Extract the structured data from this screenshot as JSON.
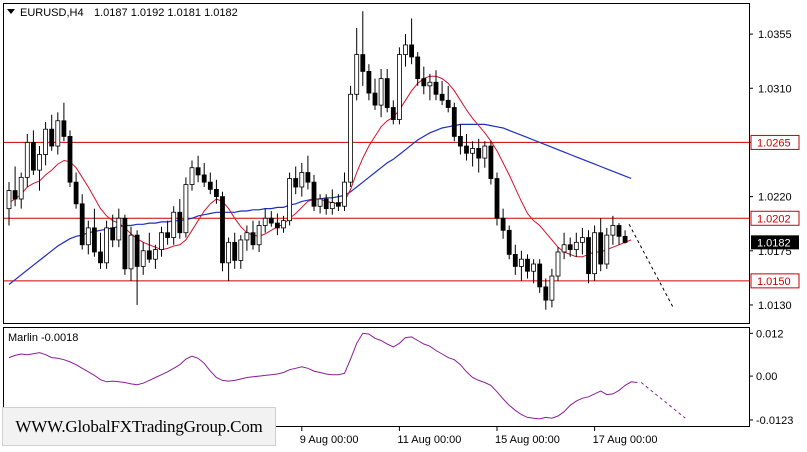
{
  "header": {
    "symbol": "EURUSD,H4",
    "ohlc": "1.0187 1.0192 1.0181 1.0182"
  },
  "watermark": "WWW.GlobalFXTradingGroup.Com",
  "colors": {
    "bull_body": "#ffffff",
    "bear_body": "#000000",
    "fast_ma": "#d4142a",
    "slow_ma": "#1c2fbf",
    "level_line": "#cc0000",
    "oscillator": "#8a1e96",
    "level_label_bg": "#ffffff",
    "current_label_bg": "#000000"
  },
  "chart_data": [
    {
      "type": "candlestick",
      "ylim": [
        1.0115,
        1.038
      ],
      "y_ticks": [
        "1.0355",
        "1.0310",
        "1.0265",
        "1.0220",
        "1.0175",
        "1.0130"
      ],
      "y_tick_values": [
        1.0355,
        1.031,
        1.0265,
        1.022,
        1.0175,
        1.013
      ],
      "levels": [
        {
          "value": 1.0265,
          "label": "1.0265"
        },
        {
          "value": 1.0202,
          "label": "1.0202"
        },
        {
          "value": 1.015,
          "label": "1.0150"
        }
      ],
      "current_price": {
        "value": 1.0182,
        "label": "1.0182"
      },
      "x_labels": [
        {
          "index": 48,
          "label": "9 Aug 00:00"
        },
        {
          "index": 64,
          "label": "11 Aug 00:00"
        },
        {
          "index": 80,
          "label": "15 Aug 00:00"
        },
        {
          "index": 96,
          "label": "17 Aug 00:00"
        }
      ],
      "candles": [
        [
          1.021,
          1.0232,
          1.0196,
          1.0225
        ],
        [
          1.0225,
          1.0245,
          1.0212,
          1.0218
        ],
        [
          1.0218,
          1.024,
          1.021,
          1.0236
        ],
        [
          1.0236,
          1.0272,
          1.0228,
          1.0265
        ],
        [
          1.0265,
          1.0275,
          1.0238,
          1.0242
        ],
        [
          1.0242,
          1.0262,
          1.0225,
          1.0255
        ],
        [
          1.0255,
          1.0282,
          1.0246,
          1.0276
        ],
        [
          1.0276,
          1.0288,
          1.0258,
          1.0262
        ],
        [
          1.0262,
          1.029,
          1.0255,
          1.0283
        ],
        [
          1.0283,
          1.0298,
          1.0266,
          1.027
        ],
        [
          1.027,
          1.0275,
          1.0228,
          1.0232
        ],
        [
          1.0232,
          1.024,
          1.021,
          1.0214
        ],
        [
          1.0214,
          1.0222,
          1.0176,
          1.018
        ],
        [
          1.018,
          1.02,
          1.0172,
          1.0194
        ],
        [
          1.0194,
          1.021,
          1.017,
          1.0174
        ],
        [
          1.0174,
          1.019,
          1.016,
          1.0165
        ],
        [
          1.0165,
          1.02,
          1.016,
          1.0194
        ],
        [
          1.0194,
          1.0205,
          1.0178,
          1.0184
        ],
        [
          1.0184,
          1.021,
          1.0178,
          1.0202
        ],
        [
          1.0202,
          1.0205,
          1.0155,
          1.016
        ],
        [
          1.016,
          1.0195,
          1.015,
          1.0188
        ],
        [
          1.0188,
          1.0192,
          1.013,
          1.0162
        ],
        [
          1.0162,
          1.0182,
          1.0155,
          1.0175
        ],
        [
          1.0175,
          1.019,
          1.0165,
          1.0168
        ],
        [
          1.0168,
          1.018,
          1.016,
          1.0176
        ],
        [
          1.0176,
          1.0195,
          1.017,
          1.019
        ],
        [
          1.019,
          1.02,
          1.018,
          1.0186
        ],
        [
          1.0186,
          1.0212,
          1.018,
          1.0207
        ],
        [
          1.0207,
          1.0218,
          1.0185,
          1.019
        ],
        [
          1.019,
          1.0236,
          1.0186,
          1.023
        ],
        [
          1.023,
          1.025,
          1.0225,
          1.0244
        ],
        [
          1.0244,
          1.0254,
          1.0232,
          1.0238
        ],
        [
          1.0238,
          1.0248,
          1.0228,
          1.0232
        ],
        [
          1.0232,
          1.024,
          1.0222,
          1.0226
        ],
        [
          1.0226,
          1.0234,
          1.0214,
          1.022
        ],
        [
          1.022,
          1.0224,
          1.0158,
          1.0165
        ],
        [
          1.0165,
          1.0186,
          1.015,
          1.0182
        ],
        [
          1.0182,
          1.019,
          1.016,
          1.0167
        ],
        [
          1.0167,
          1.0188,
          1.016,
          1.0184
        ],
        [
          1.0184,
          1.0196,
          1.0175,
          1.019
        ],
        [
          1.019,
          1.02,
          1.0176,
          1.018
        ],
        [
          1.018,
          1.02,
          1.0174,
          1.0196
        ],
        [
          1.0196,
          1.021,
          1.019,
          1.0202
        ],
        [
          1.0202,
          1.0208,
          1.0195,
          1.0198
        ],
        [
          1.0198,
          1.0206,
          1.0188,
          1.0194
        ],
        [
          1.0194,
          1.0204,
          1.019,
          1.02
        ],
        [
          1.02,
          1.024,
          1.0196,
          1.0235
        ],
        [
          1.0235,
          1.0245,
          1.0222,
          1.0228
        ],
        [
          1.0228,
          1.0248,
          1.022,
          1.024
        ],
        [
          1.024,
          1.0254,
          1.0226,
          1.0232
        ],
        [
          1.0232,
          1.0238,
          1.0208,
          1.0212
        ],
        [
          1.0212,
          1.0222,
          1.0206,
          1.0218
        ],
        [
          1.0218,
          1.0222,
          1.0205,
          1.021
        ],
        [
          1.021,
          1.0226,
          1.0205,
          1.0215
        ],
        [
          1.0215,
          1.0222,
          1.0208,
          1.0212
        ],
        [
          1.0212,
          1.024,
          1.0208,
          1.0232
        ],
        [
          1.0232,
          1.0312,
          1.0228,
          1.0305
        ],
        [
          1.0305,
          1.036,
          1.03,
          1.0338
        ],
        [
          1.0338,
          1.0374,
          1.0312,
          1.0324
        ],
        [
          1.0324,
          1.033,
          1.03,
          1.0306
        ],
        [
          1.0306,
          1.0318,
          1.0292,
          1.0296
        ],
        [
          1.0296,
          1.0326,
          1.0286,
          1.0318
        ],
        [
          1.0318,
          1.0326,
          1.029,
          1.0294
        ],
        [
          1.0294,
          1.03,
          1.028,
          1.0284
        ],
        [
          1.0284,
          1.0344,
          1.028,
          1.0338
        ],
        [
          1.0338,
          1.0355,
          1.0328,
          1.0346
        ],
        [
          1.0346,
          1.0368,
          1.033,
          1.0336
        ],
        [
          1.0336,
          1.034,
          1.0312,
          1.0318
        ],
        [
          1.0318,
          1.0328,
          1.0305,
          1.0312
        ],
        [
          1.0312,
          1.0322,
          1.03,
          1.0315
        ],
        [
          1.0315,
          1.0325,
          1.03,
          1.0305
        ],
        [
          1.0305,
          1.0316,
          1.0296,
          1.03
        ],
        [
          1.03,
          1.0312,
          1.029,
          1.0294
        ],
        [
          1.0294,
          1.0298,
          1.0266,
          1.027
        ],
        [
          1.027,
          1.028,
          1.0255,
          1.0262
        ],
        [
          1.0262,
          1.0272,
          1.025,
          1.0256
        ],
        [
          1.0256,
          1.0266,
          1.0245,
          1.026
        ],
        [
          1.026,
          1.0268,
          1.024,
          1.0252
        ],
        [
          1.0252,
          1.0266,
          1.0244,
          1.0262
        ],
        [
          1.0262,
          1.0266,
          1.023,
          1.0235
        ],
        [
          1.0235,
          1.024,
          1.0196,
          1.0202
        ],
        [
          1.0202,
          1.021,
          1.0185,
          1.0192
        ],
        [
          1.0192,
          1.0196,
          1.0168,
          1.0172
        ],
        [
          1.0172,
          1.018,
          1.0155,
          1.0162
        ],
        [
          1.0162,
          1.0175,
          1.015,
          1.0168
        ],
        [
          1.0168,
          1.0172,
          1.0152,
          1.0158
        ],
        [
          1.0158,
          1.0168,
          1.0148,
          1.0164
        ],
        [
          1.0164,
          1.0168,
          1.014,
          1.0145
        ],
        [
          1.0145,
          1.0152,
          1.0126,
          1.0134
        ],
        [
          1.0134,
          1.016,
          1.0128,
          1.0154
        ],
        [
          1.0154,
          1.0178,
          1.015,
          1.0174
        ],
        [
          1.0174,
          1.019,
          1.0168,
          1.018
        ],
        [
          1.018,
          1.0186,
          1.017,
          1.0176
        ],
        [
          1.0176,
          1.019,
          1.017,
          1.0182
        ],
        [
          1.0182,
          1.0194,
          1.0172,
          1.0186
        ],
        [
          1.0186,
          1.0192,
          1.0148,
          1.0156
        ],
        [
          1.0156,
          1.0196,
          1.015,
          1.019
        ],
        [
          1.019,
          1.0202,
          1.0158,
          1.0164
        ],
        [
          1.0164,
          1.0194,
          1.016,
          1.0188
        ],
        [
          1.0188,
          1.0204,
          1.018,
          1.0196
        ],
        [
          1.0196,
          1.0198,
          1.018,
          1.0187
        ],
        [
          1.0187,
          1.0192,
          1.0181,
          1.0182
        ]
      ],
      "fast_ma": [
        1.0215,
        1.0218,
        1.0222,
        1.0228,
        1.0231,
        1.0233,
        1.0238,
        1.0242,
        1.0247,
        1.025,
        1.0249,
        1.0244,
        1.0236,
        1.0228,
        1.0219,
        1.021,
        1.0204,
        1.02,
        1.0198,
        1.0194,
        1.0189,
        1.0185,
        1.0182,
        1.018,
        1.0178,
        1.0176,
        1.0177,
        1.0179,
        1.018,
        1.0184,
        1.0192,
        1.02,
        1.0208,
        1.0214,
        1.0218,
        1.0216,
        1.021,
        1.0202,
        1.0195,
        1.019,
        1.0188,
        1.0187,
        1.0189,
        1.0192,
        1.0195,
        1.0197,
        1.0202,
        1.0206,
        1.0211,
        1.0216,
        1.0218,
        1.0218,
        1.0216,
        1.0215,
        1.0214,
        1.0216,
        1.0226,
        1.024,
        1.0252,
        1.0262,
        1.027,
        1.0278,
        1.0283,
        1.0286,
        1.0292,
        1.03,
        1.0308,
        1.0314,
        1.0318,
        1.032,
        1.032,
        1.0318,
        1.0314,
        1.0308,
        1.03,
        1.0292,
        1.0285,
        1.0279,
        1.0273,
        1.0266,
        1.0258,
        1.0248,
        1.0238,
        1.0227,
        1.0216,
        1.0206,
        1.02,
        1.0196,
        1.019,
        1.0184,
        1.0178,
        1.0174,
        1.0172,
        1.017,
        1.017,
        1.0172,
        1.0174,
        1.0174,
        1.0176,
        1.0178,
        1.018,
        1.0182,
        1.0184
      ],
      "slow_ma": [
        1.0147,
        1.0151,
        1.0155,
        1.0159,
        1.0163,
        1.0167,
        1.0171,
        1.0175,
        1.0179,
        1.0182,
        1.0185,
        1.0187,
        1.0188,
        1.019,
        1.0191,
        1.0192,
        1.0193,
        1.0194,
        1.0195,
        1.0196,
        1.0196,
        1.0197,
        1.0197,
        1.0198,
        1.0198,
        1.0199,
        1.0199,
        1.02,
        1.02,
        1.0201,
        1.0202,
        1.0204,
        1.0205,
        1.0206,
        1.0207,
        1.0207,
        1.0207,
        1.0207,
        1.0208,
        1.0208,
        1.0209,
        1.0209,
        1.021,
        1.021,
        1.0211,
        1.0211,
        1.0213,
        1.0214,
        1.0216,
        1.0217,
        1.0218,
        1.0218,
        1.0219,
        1.0219,
        1.022,
        1.0221,
        1.0224,
        1.0228,
        1.0232,
        1.0236,
        1.024,
        1.0244,
        1.0248,
        1.0251,
        1.0255,
        1.0259,
        1.0263,
        1.0267,
        1.027,
        1.0273,
        1.0275,
        1.0277,
        1.0278,
        1.0279,
        1.028,
        1.028,
        1.028,
        1.028,
        1.028,
        1.0279,
        1.0278,
        1.0277,
        1.0275,
        1.0273,
        1.0271,
        1.0269,
        1.0267,
        1.0265,
        1.0263,
        1.0261,
        1.0259,
        1.0257,
        1.0255,
        1.0253,
        1.0251,
        1.0249,
        1.0247,
        1.0245,
        1.0243,
        1.0241,
        1.0239,
        1.0237,
        1.0235
      ],
      "forecast": [
        [
          1.0197,
          1.0128
        ]
      ]
    },
    {
      "type": "line",
      "name": "Marlin -0.0018",
      "ylim": [
        -0.014,
        0.0135
      ],
      "y_ticks": [
        "0.012",
        "0.00",
        "-0.0123"
      ],
      "y_tick_values": [
        0.012,
        0.0,
        -0.0123
      ],
      "values": [
        0.0052,
        0.0058,
        0.0062,
        0.006,
        0.0063,
        0.0066,
        0.006,
        0.0052,
        0.005,
        0.0046,
        0.004,
        0.0032,
        0.0022,
        0.0012,
        0.0002,
        -0.001,
        -0.0016,
        -0.0014,
        -0.0016,
        -0.0018,
        -0.0022,
        -0.0024,
        -0.002,
        -0.0012,
        -0.0004,
        0.0004,
        0.0012,
        0.0022,
        0.0032,
        0.0048,
        0.0056,
        0.005,
        0.0036,
        0.0014,
        -0.0004,
        -0.0012,
        -0.0014,
        -0.0012,
        -0.0008,
        -0.0004,
        -0.0002,
        0.0,
        0.0002,
        0.0004,
        0.0006,
        0.001,
        0.0018,
        0.0022,
        0.0026,
        0.0022,
        0.0014,
        0.001,
        0.0006,
        0.0004,
        0.0004,
        0.0008,
        0.0048,
        0.0092,
        0.012,
        0.0118,
        0.0106,
        0.01,
        0.009,
        0.0082,
        0.0092,
        0.0108,
        0.011,
        0.01,
        0.009,
        0.0084,
        0.0072,
        0.0062,
        0.0052,
        0.0046,
        0.0032,
        0.0012,
        -0.0004,
        -0.0012,
        -0.0018,
        -0.0026,
        -0.0044,
        -0.0064,
        -0.0082,
        -0.0096,
        -0.0108,
        -0.0116,
        -0.0118,
        -0.012,
        -0.0116,
        -0.0118,
        -0.0112,
        -0.01,
        -0.0082,
        -0.007,
        -0.0062,
        -0.0058,
        -0.005,
        -0.0042,
        -0.0052,
        -0.005,
        -0.004,
        -0.0026,
        -0.0016,
        -0.0018
      ],
      "forecast": [
        [
          -0.0018,
          -0.0118
        ]
      ]
    }
  ]
}
